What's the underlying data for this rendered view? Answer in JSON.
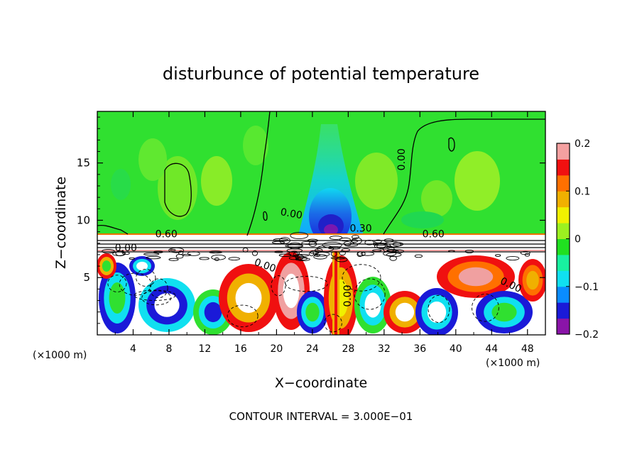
{
  "chart_data": {
    "type": "heatmap",
    "title": "disturbunce of potential temperature",
    "xlabel": "X−coordinate",
    "ylabel": "Z−coordinate",
    "x_unit_label": "(×1000 m)",
    "z_unit_label": "(×1000 m)",
    "footer": "CONTOUR INTERVAL = 3.000E−01",
    "xlim": [
      0,
      50
    ],
    "ylim": [
      0,
      19.5
    ],
    "x_ticks": [
      4,
      8,
      12,
      16,
      20,
      24,
      28,
      32,
      36,
      40,
      44,
      48
    ],
    "y_ticks": [
      5,
      10,
      15
    ],
    "colorbar": {
      "range": [
        -0.2,
        0.2
      ],
      "tick_values": [
        0.2,
        0.1,
        0,
        -0.1,
        -0.2
      ],
      "tick_labels": [
        "0.2",
        "0.1",
        "0",
        "−0.1",
        "−0.2"
      ],
      "colors": [
        "#8a14a8",
        "#1a1ad8",
        "#0a8cff",
        "#10e0f0",
        "#18f0a0",
        "#20e020",
        "#9cf020",
        "#f0f000",
        "#f0b000",
        "#ff7000",
        "#f01010",
        "#f4a0a0"
      ]
    },
    "contour_labels": [
      {
        "text": "0.00",
        "x": 34.3,
        "z": 15.3,
        "angle": -90
      },
      {
        "text": "0.00",
        "x": 21.6,
        "z": 10.3,
        "angle": 10
      },
      {
        "text": "0.60",
        "x": 7.7,
        "z": 8.5,
        "angle": 0
      },
      {
        "text": "0.60",
        "x": 37.5,
        "z": 8.5,
        "angle": 0
      },
      {
        "text": "0.30",
        "x": 29.4,
        "z": 9.0,
        "angle": 0
      },
      {
        "text": "0.00",
        "x": 3.2,
        "z": 7.3,
        "angle": 0
      },
      {
        "text": "0.00",
        "x": 18.6,
        "z": 5.8,
        "angle": 20
      },
      {
        "text": "0.00",
        "x": 28.3,
        "z": 3.4,
        "angle": -90
      },
      {
        "text": "0.00",
        "x": 46.0,
        "z": 4.1,
        "angle": 25
      }
    ]
  }
}
